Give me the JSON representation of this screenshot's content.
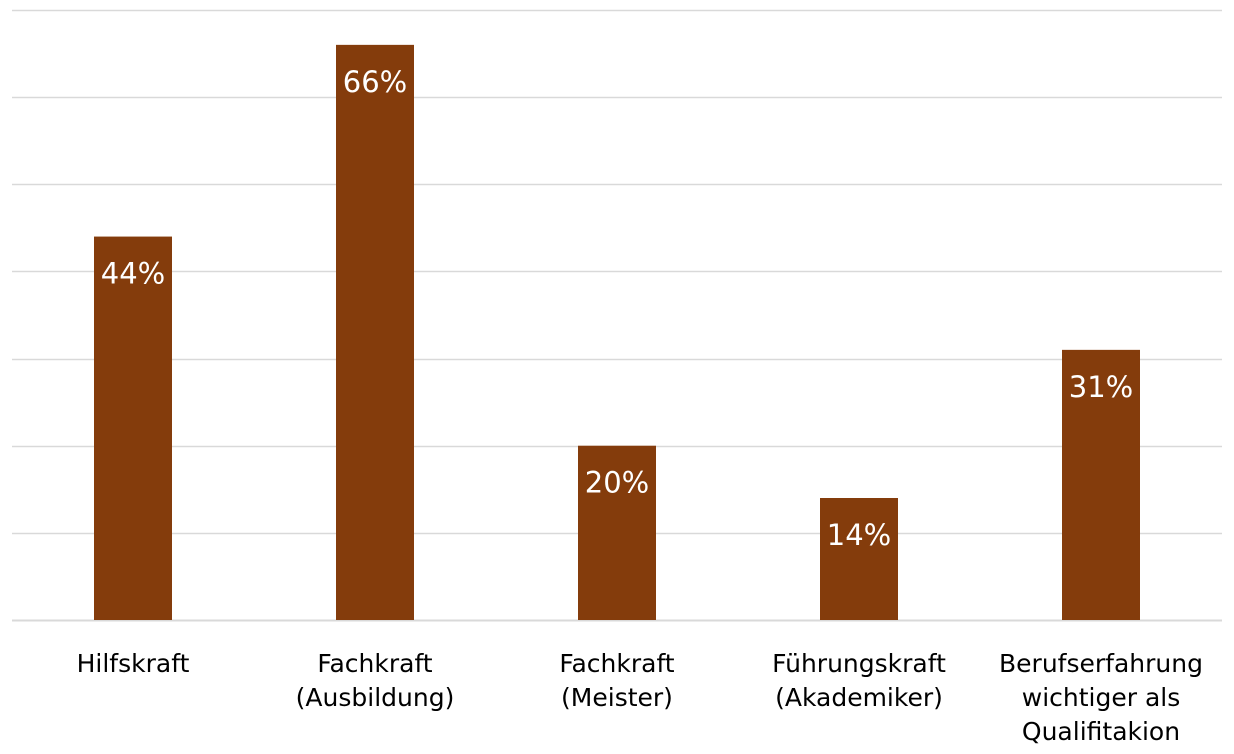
{
  "chart_data": {
    "type": "bar",
    "categories": [
      [
        "Hilfskraft"
      ],
      [
        "Fachkraft",
        "(Ausbildung)"
      ],
      [
        "Fachkraft",
        "(Meister)"
      ],
      [
        "Führungskraft",
        "(Akademiker)"
      ],
      [
        "Berufserfahrung",
        "wichtiger als",
        "Qualifitakion"
      ]
    ],
    "values": [
      44,
      66,
      20,
      14,
      31
    ],
    "data_labels": [
      "44%",
      "66%",
      "20%",
      "14%",
      "31%"
    ],
    "title": "",
    "xlabel": "",
    "ylabel": "",
    "ylim": [
      0,
      70
    ],
    "y_gridline_step": 10,
    "y_tick_labels_visible": false,
    "grid": true,
    "legend": "none",
    "colors": {
      "bar": "#843c0c",
      "grid": "#d9d9d9",
      "data_label": "#ffffff",
      "category_label": "#000000"
    }
  }
}
